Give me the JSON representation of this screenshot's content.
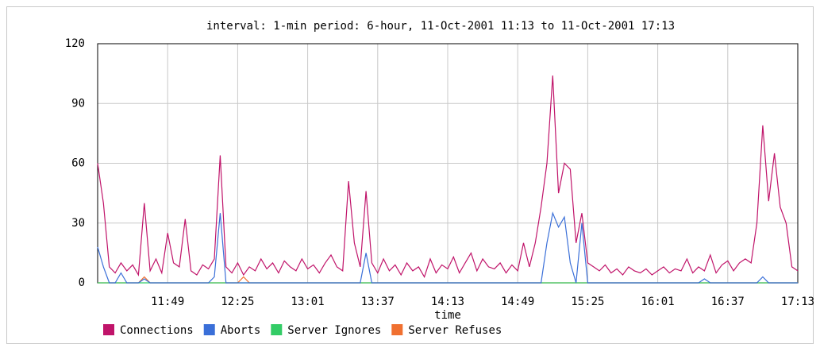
{
  "chart_data": {
    "type": "line",
    "title": "interval: 1-min  period: 6-hour, 11-Oct-2001 11:13 to 11-Oct-2001 17:13",
    "x_label": "time",
    "x": [
      "11:13",
      "11:16",
      "11:19",
      "11:22",
      "11:25",
      "11:28",
      "11:31",
      "11:34",
      "11:37",
      "11:40",
      "11:43",
      "11:46",
      "11:49",
      "11:52",
      "11:55",
      "11:58",
      "12:01",
      "12:04",
      "12:07",
      "12:10",
      "12:13",
      "12:16",
      "12:19",
      "12:22",
      "12:25",
      "12:28",
      "12:31",
      "12:34",
      "12:37",
      "12:40",
      "12:43",
      "12:46",
      "12:49",
      "12:52",
      "12:55",
      "12:58",
      "13:01",
      "13:04",
      "13:07",
      "13:10",
      "13:13",
      "13:16",
      "13:19",
      "13:22",
      "13:25",
      "13:28",
      "13:31",
      "13:34",
      "13:37",
      "13:40",
      "13:43",
      "13:46",
      "13:49",
      "13:52",
      "13:55",
      "13:58",
      "14:01",
      "14:04",
      "14:07",
      "14:10",
      "14:13",
      "14:16",
      "14:19",
      "14:22",
      "14:25",
      "14:28",
      "14:31",
      "14:34",
      "14:37",
      "14:40",
      "14:43",
      "14:46",
      "14:49",
      "14:52",
      "14:55",
      "14:58",
      "15:01",
      "15:04",
      "15:07",
      "15:10",
      "15:13",
      "15:16",
      "15:19",
      "15:22",
      "15:25",
      "15:28",
      "15:31",
      "15:34",
      "15:37",
      "15:40",
      "15:43",
      "15:46",
      "15:49",
      "15:52",
      "15:55",
      "15:58",
      "16:01",
      "16:04",
      "16:07",
      "16:10",
      "16:13",
      "16:16",
      "16:19",
      "16:22",
      "16:25",
      "16:28",
      "16:31",
      "16:34",
      "16:37",
      "16:40",
      "16:43",
      "16:46",
      "16:49",
      "16:52",
      "16:55",
      "16:58",
      "17:01",
      "17:04",
      "17:07",
      "17:10",
      "17:13"
    ],
    "xlim": [
      "11:13",
      "17:13"
    ],
    "xticks": [
      "11:49",
      "12:25",
      "13:01",
      "13:37",
      "14:13",
      "14:49",
      "15:25",
      "16:01",
      "16:37",
      "17:13"
    ],
    "ylim": [
      0,
      120
    ],
    "yticks": [
      0,
      30,
      60,
      90,
      120
    ],
    "grid": true,
    "series": [
      {
        "name": "Connections",
        "color": "#c0146a",
        "values": [
          60,
          40,
          8,
          5,
          10,
          6,
          9,
          4,
          40,
          6,
          12,
          5,
          25,
          10,
          8,
          32,
          6,
          4,
          9,
          7,
          12,
          64,
          8,
          5,
          10,
          4,
          8,
          6,
          12,
          7,
          10,
          5,
          11,
          8,
          6,
          12,
          7,
          9,
          5,
          10,
          14,
          8,
          6,
          51,
          20,
          8,
          46,
          10,
          5,
          12,
          6,
          9,
          4,
          10,
          6,
          8,
          3,
          12,
          5,
          9,
          7,
          13,
          5,
          10,
          15,
          6,
          12,
          8,
          7,
          10,
          5,
          9,
          6,
          20,
          8,
          20,
          38,
          60,
          104,
          45,
          60,
          57,
          20,
          35,
          10,
          8,
          6,
          9,
          5,
          7,
          4,
          8,
          6,
          5,
          7,
          4,
          6,
          8,
          5,
          7,
          6,
          12,
          5,
          8,
          6,
          14,
          5,
          9,
          11,
          6,
          10,
          12,
          10,
          30,
          79,
          41,
          65,
          38,
          30,
          8,
          6
        ]
      },
      {
        "name": "Aborts",
        "color": "#3a6fd8",
        "values": [
          18,
          8,
          0,
          0,
          5,
          0,
          0,
          0,
          2,
          0,
          0,
          0,
          0,
          0,
          0,
          0,
          0,
          0,
          0,
          0,
          3,
          35,
          0,
          0,
          0,
          0,
          0,
          0,
          0,
          0,
          0,
          0,
          0,
          0,
          0,
          0,
          0,
          0,
          0,
          0,
          0,
          0,
          0,
          0,
          0,
          0,
          15,
          0,
          0,
          0,
          0,
          0,
          0,
          0,
          0,
          0,
          0,
          0,
          0,
          0,
          0,
          0,
          0,
          0,
          0,
          0,
          0,
          0,
          0,
          0,
          0,
          0,
          0,
          0,
          0,
          0,
          0,
          20,
          35,
          28,
          33,
          10,
          0,
          30,
          0,
          0,
          0,
          0,
          0,
          0,
          0,
          0,
          0,
          0,
          0,
          0,
          0,
          0,
          0,
          0,
          0,
          0,
          0,
          0,
          2,
          0,
          0,
          0,
          0,
          0,
          0,
          0,
          0,
          0,
          3,
          0,
          0,
          0,
          0,
          0,
          0
        ]
      },
      {
        "name": "Server Ignores",
        "color": "#33cc66",
        "values": [
          0,
          0,
          0,
          0,
          0,
          0,
          0,
          0,
          0,
          0,
          0,
          0,
          0,
          0,
          0,
          0,
          0,
          0,
          0,
          0,
          0,
          0,
          0,
          0,
          0,
          0,
          0,
          0,
          0,
          0,
          0,
          0,
          0,
          0,
          0,
          0,
          0,
          0,
          0,
          0,
          0,
          0,
          0,
          0,
          0,
          0,
          0,
          0,
          0,
          0,
          0,
          0,
          0,
          0,
          0,
          0,
          0,
          0,
          0,
          0,
          0,
          0,
          0,
          0,
          0,
          0,
          0,
          0,
          0,
          0,
          0,
          0,
          0,
          0,
          0,
          0,
          0,
          0,
          0,
          0,
          0,
          0,
          0,
          0,
          0,
          0,
          0,
          0,
          0,
          0,
          0,
          0,
          0,
          0,
          0,
          0,
          0,
          0,
          0,
          0,
          0,
          0,
          0,
          0,
          0,
          0,
          0,
          0,
          0,
          0,
          0,
          0,
          0,
          0,
          0,
          0,
          0,
          0,
          0,
          0,
          0
        ]
      },
      {
        "name": "Server Refuses",
        "color": "#f07030",
        "values": [
          0,
          0,
          0,
          0,
          0,
          0,
          0,
          0,
          3,
          0,
          0,
          0,
          0,
          0,
          0,
          0,
          0,
          0,
          0,
          0,
          0,
          0,
          0,
          0,
          0,
          3,
          0,
          0,
          0,
          0,
          0,
          0,
          0,
          0,
          0,
          0,
          0,
          0,
          0,
          0,
          0,
          0,
          0,
          0,
          0,
          0,
          0,
          0,
          0,
          0,
          0,
          0,
          0,
          0,
          0,
          0,
          0,
          0,
          0,
          0,
          0,
          0,
          0,
          0,
          0,
          0,
          0,
          0,
          0,
          0,
          0,
          0,
          0,
          0,
          0,
          0,
          0,
          0,
          0,
          0,
          0,
          0,
          0,
          0,
          0,
          0,
          0,
          0,
          0,
          0,
          0,
          0,
          0,
          0,
          0,
          0,
          0,
          0,
          0,
          0,
          0,
          0,
          0,
          0,
          0,
          0,
          0,
          0,
          0,
          0,
          0,
          0,
          0,
          0,
          0,
          0,
          0,
          0,
          0,
          0,
          0
        ]
      }
    ]
  }
}
